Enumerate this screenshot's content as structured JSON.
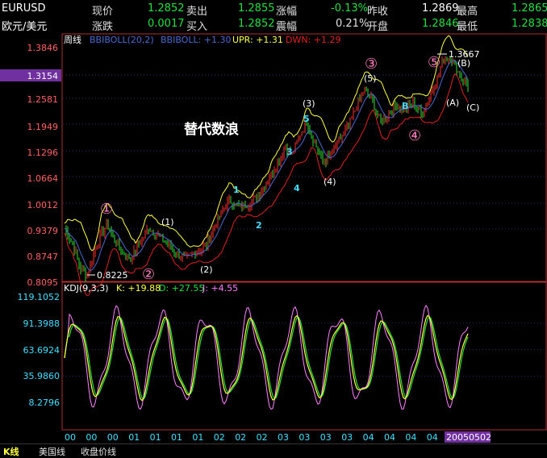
{
  "quote": {
    "symbol": "EURUSD",
    "name": "欧元/美元",
    "row1": [
      {
        "label": "现价",
        "value": "1.2852"
      },
      {
        "label": "卖出",
        "value": "1.2855"
      },
      {
        "label": "涨幅",
        "value": "-0.13%"
      },
      {
        "label": "昨收",
        "value": "1.2869"
      },
      {
        "label": "最高",
        "value": "1.2865"
      }
    ],
    "row2": [
      {
        "label": "涨跌",
        "value": "0.0017"
      },
      {
        "label": "买入",
        "value": "1.2852"
      },
      {
        "label": "震幅",
        "value": "0.21%"
      },
      {
        "label": "开盘",
        "value": "1.2846"
      },
      {
        "label": "最低",
        "value": "1.2838"
      }
    ]
  },
  "price_panel": {
    "period": "周线",
    "indicator": "BBIBOLL(20,2)",
    "legend": [
      {
        "text": "BBIBOLL: +1.30",
        "color": "#4a6ad0"
      },
      {
        "text": "UPR: +1.31",
        "color": "#ffff40"
      },
      {
        "text": "DWN: +1.29",
        "color": "#e02020"
      }
    ],
    "y_ticks": [
      "1.3846",
      "1.3154",
      "1.2581",
      "1.1949",
      "1.1296",
      "1.0664",
      "1.0012",
      "0.9379",
      "0.8747",
      "0.8095"
    ],
    "current_price": "1.3154",
    "annotation": "替代数浪",
    "low_label": "0.8225",
    "high_label": "1.3667",
    "wave_labels": {
      "circled": [
        "①",
        "②",
        "③",
        "④",
        "⑤"
      ],
      "minor": [
        "(1)",
        "(2)",
        "(3)",
        "(4)",
        "(5)",
        "(A)",
        "(B)",
        "(C)"
      ],
      "small": [
        "1",
        "2",
        "3",
        "4",
        "5",
        "B"
      ]
    }
  },
  "kdj_panel": {
    "indicator": "KDJ(9,3,3)",
    "legend": [
      {
        "text": "K: +19.88",
        "color": "#ffff40"
      },
      {
        "text": "D: +27.55",
        "color": "#20e040"
      },
      {
        "text": "J: +4.55",
        "color": "#ff80ff"
      }
    ],
    "y_ticks": [
      "119.1052",
      "91.3988",
      "63.6924",
      "35.9860",
      "8.2796"
    ]
  },
  "x_axis": {
    "labels": [
      "00",
      "00",
      "00",
      "01",
      "01",
      "01",
      "01",
      "02",
      "02",
      "02",
      "03",
      "03",
      "03",
      "03",
      "04",
      "04",
      "04",
      "04",
      "0"
    ],
    "cursor_date": "20050502"
  },
  "footer": {
    "tabs": [
      "K线",
      "美国线",
      "收盘价线"
    ]
  },
  "colors": {
    "bull": "#ff3030",
    "bear": "#30e030",
    "upper": "#ffff40",
    "middle": "#4a6ad0",
    "lower": "#e02020",
    "grid": "#2a2a6a",
    "circled": "#ff80c0",
    "small_wave": "#40e0ff"
  }
}
